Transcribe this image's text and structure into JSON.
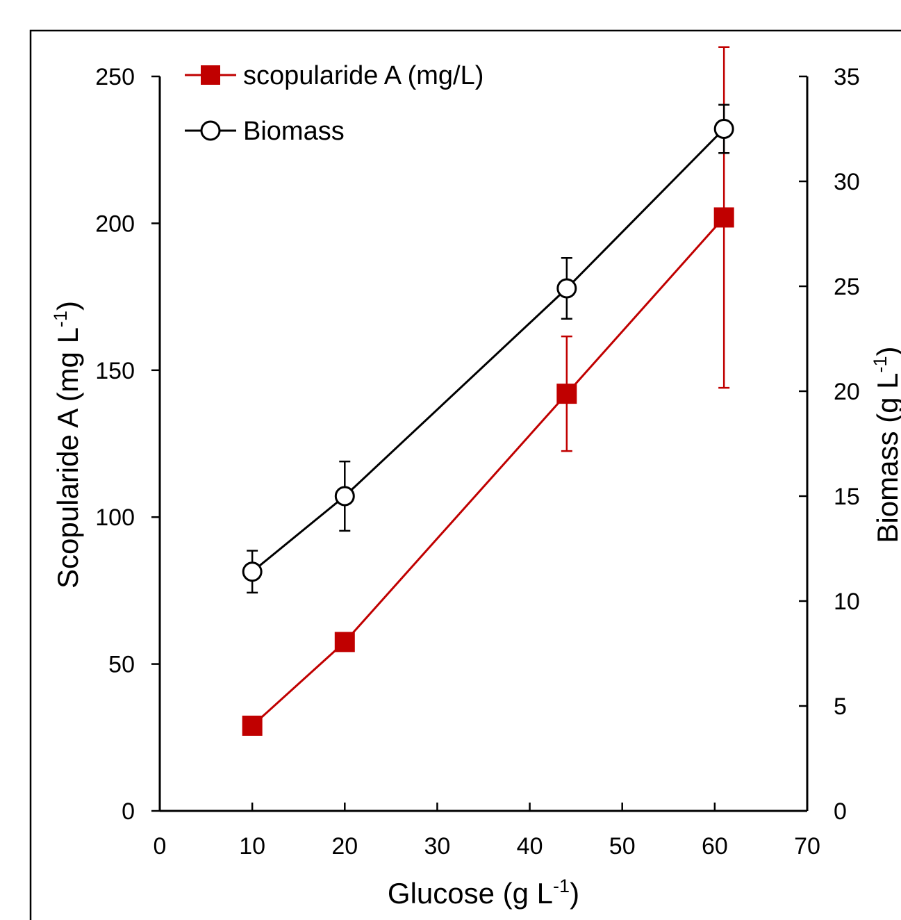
{
  "chart_data": {
    "type": "line",
    "xlabel": "Glucose (g L-1)",
    "xlabel_main": "Glucose (g L",
    "xlabel_sup": "-1",
    "xlabel_end": ")",
    "ylabel": "Scopularide A (mg L-1)",
    "ylabel_main": "Scopularide A (mg L",
    "ylabel_sup": "-1",
    "ylabel_end": ")",
    "y2label": "Biomass (g L-1)",
    "y2label_main": "Biomass (g L",
    "y2label_sup": "-1",
    "y2label_end": ")",
    "xlim": [
      0,
      70
    ],
    "ylim": [
      0,
      250
    ],
    "y2lim": [
      0,
      35
    ],
    "xticks": [
      "0",
      "10",
      "20",
      "30",
      "40",
      "50",
      "60",
      "70"
    ],
    "yticks": [
      "0",
      "50",
      "100",
      "150",
      "200",
      "250"
    ],
    "y2ticks": [
      "0",
      "5",
      "10",
      "15",
      "20",
      "25",
      "30",
      "35"
    ],
    "legend_position": "top-left",
    "grid": false,
    "series": [
      {
        "name": "scopularide A (mg/L)",
        "axis": "left",
        "marker": "filled-square",
        "color": "#c00000",
        "x": [
          10,
          20,
          44,
          61
        ],
        "y": [
          29,
          57.5,
          142,
          202
        ],
        "err": [
          0,
          0,
          19.5,
          58
        ]
      },
      {
        "name": "Biomass",
        "axis": "right",
        "marker": "open-circle",
        "color": "#000000",
        "x": [
          10,
          20,
          44,
          61
        ],
        "y": [
          11.4,
          15,
          24.9,
          32.5
        ],
        "err": [
          1,
          1.65,
          1.45,
          1.15
        ]
      }
    ]
  }
}
